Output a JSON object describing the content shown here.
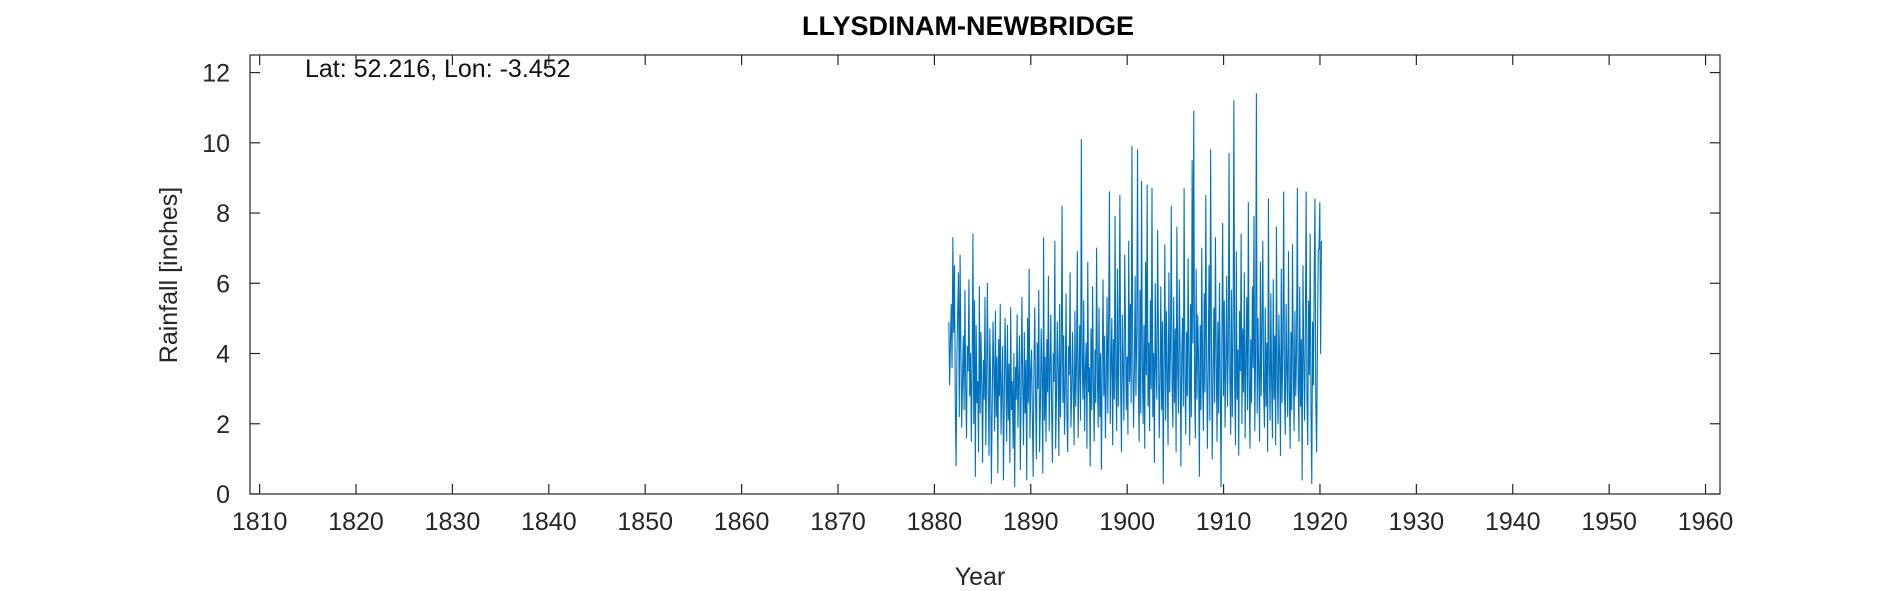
{
  "chart_data": {
    "type": "line",
    "title": "LLYSDINAM-NEWBRIDGE",
    "annotation": "Lat: 52.216, Lon: -3.452",
    "xlabel": "Year",
    "ylabel": "Rainfall [inches]",
    "xlim": [
      1809,
      1961.5
    ],
    "ylim": [
      0,
      12.5
    ],
    "xticks": [
      1810,
      1820,
      1830,
      1840,
      1850,
      1860,
      1870,
      1880,
      1890,
      1900,
      1910,
      1920,
      1930,
      1940,
      1950,
      1960
    ],
    "yticks": [
      0,
      2,
      4,
      6,
      8,
      10,
      12
    ],
    "grid": false,
    "series_color": "#0072BD",
    "series": [
      {
        "start_year": 1881.5,
        "step_years": 0.0833,
        "values": [
          4.9,
          3.1,
          4.4,
          5.4,
          3.6,
          7.3,
          4.6,
          6.5,
          2.6,
          0.8,
          3.9,
          5.2,
          6.3,
          2.2,
          6.8,
          4.1,
          1.9,
          3.3,
          4.5,
          2.4,
          5.8,
          3.0,
          1.6,
          4.2,
          3.5,
          6.1,
          2.8,
          4.0,
          1.5,
          3.7,
          7.4,
          2.0,
          5.5,
          0.5,
          4.8,
          2.6,
          3.2,
          1.2,
          5.9,
          2.3,
          4.6,
          3.1,
          0.9,
          3.8,
          2.7,
          5.6,
          1.4,
          3.4,
          6.0,
          2.9,
          1.1,
          4.7,
          3.3,
          0.3,
          2.5,
          4.9,
          3.6,
          1.8,
          5.2,
          2.2,
          3.9,
          0.6,
          4.4,
          2.8,
          5.4,
          1.7,
          3.0,
          4.2,
          0.4,
          2.6,
          5.0,
          3.5,
          1.5,
          4.8,
          2.1,
          3.7,
          0.9,
          5.3,
          2.4,
          3.2,
          1.3,
          4.0,
          0.2,
          3.6,
          2.7,
          5.1,
          1.9,
          3.3,
          4.5,
          0.7,
          2.9,
          5.6,
          3.1,
          1.4,
          4.6,
          2.3,
          3.8,
          0.4,
          5.0,
          2.6,
          6.4,
          1.6,
          3.4,
          4.1,
          2.2,
          0.5,
          3.7,
          5.3,
          2.8,
          1.0,
          4.3,
          3.0,
          5.8,
          1.2,
          2.5,
          4.7,
          3.3,
          0.6,
          7.3,
          2.1,
          3.9,
          1.5,
          4.4,
          2.9,
          6.2,
          1.8,
          3.5,
          5.1,
          2.4,
          0.9,
          4.0,
          3.2,
          7.2,
          1.3,
          2.7,
          4.9,
          3.6,
          1.1,
          5.4,
          2.2,
          3.8,
          8.2,
          2.6,
          4.5,
          1.7,
          3.1,
          5.7,
          2.3,
          1.2,
          4.2,
          3.4,
          6.3,
          1.9,
          2.8,
          4.6,
          3.0,
          1.4,
          5.2,
          2.5,
          3.7,
          6.9,
          1.6,
          3.3,
          4.8,
          2.1,
          10.1,
          3.9,
          2.7,
          5.5,
          1.8,
          3.5,
          4.3,
          1.3,
          6.6,
          2.9,
          3.6,
          0.8,
          4.7,
          2.4,
          5.9,
          3.2,
          1.5,
          4.1,
          2.6,
          7.0,
          3.4,
          1.9,
          5.3,
          2.2,
          4.0,
          0.7,
          3.7,
          6.1,
          2.8,
          4.5,
          1.6,
          3.1,
          5.6,
          2.3,
          4.9,
          8.6,
          2.0,
          3.8,
          5.0,
          1.4,
          4.4,
          2.7,
          7.9,
          3.3,
          1.8,
          6.4,
          2.5,
          4.2,
          8.5,
          3.0,
          1.2,
          5.1,
          3.6,
          2.1,
          6.8,
          4.7,
          2.4,
          3.9,
          1.7,
          7.2,
          3.2,
          5.4,
          2.6,
          9.9,
          4.1,
          1.9,
          3.5,
          6.2,
          2.8,
          4.6,
          9.8,
          3.1,
          1.5,
          5.8,
          2.3,
          8.9,
          3.7,
          2.0,
          4.8,
          1.3,
          6.6,
          3.4,
          8.8,
          2.5,
          4.3,
          1.8,
          5.5,
          3.0,
          8.7,
          2.2,
          4.0,
          0.9,
          6.0,
          3.6,
          2.7,
          7.5,
          4.5,
          1.6,
          3.2,
          5.9,
          2.4,
          4.9,
          0.3,
          3.8,
          7.1,
          2.1,
          5.2,
          3.4,
          1.4,
          6.3,
          2.9,
          4.1,
          8.2,
          3.1,
          1.9,
          5.6,
          2.6,
          4.7,
          1.2,
          7.6,
          3.5,
          2.3,
          6.1,
          4.2,
          0.8,
          3.9,
          5.0,
          2.5,
          8.7,
          3.3,
          1.7,
          4.6,
          2.8,
          6.7,
          3.7,
          1.4,
          5.4,
          2.2,
          9.5,
          4.3,
          10.9,
          3.0,
          1.6,
          6.4,
          2.7,
          5.1,
          3.8,
          0.5,
          4.8,
          2.4,
          7.0,
          3.2,
          1.8,
          5.7,
          2.9,
          8.5,
          4.0,
          1.3,
          3.6,
          6.5,
          2.1,
          9.8,
          4.4,
          1.0,
          3.4,
          5.3,
          2.6,
          7.3,
          3.9,
          1.5,
          4.9,
          2.3,
          6.0,
          3.1,
          0.2,
          4.5,
          7.7,
          2.8,
          5.5,
          1.9,
          3.7,
          6.2,
          2.5,
          4.2,
          9.7,
          3.3,
          1.7,
          5.8,
          2.2,
          4.6,
          11.2,
          3.0,
          1.4,
          6.9,
          2.7,
          4.1,
          1.1,
          5.2,
          3.5,
          7.4,
          2.0,
          4.7,
          2.9,
          6.3,
          1.6,
          3.8,
          5.6,
          2.4,
          8.3,
          3.2,
          1.3,
          4.4,
          2.6,
          5.9,
          3.6,
          7.9,
          1.8,
          4.0,
          11.4,
          2.3,
          5.0,
          3.4,
          1.5,
          6.6,
          2.8,
          4.8,
          7.2,
          3.0,
          1.9,
          5.3,
          2.5,
          4.3,
          1.2,
          8.4,
          3.7,
          2.1,
          5.7,
          3.1,
          1.6,
          6.1,
          2.7,
          4.5,
          1.4,
          7.6,
          3.3,
          2.0,
          5.1,
          3.8,
          1.1,
          6.4,
          2.6,
          4.2,
          8.6,
          2.9,
          1.7,
          5.4,
          3.5,
          2.2,
          6.9,
          3.0,
          1.3,
          4.6,
          2.4,
          7.1,
          3.6,
          1.8,
          5.2,
          2.8,
          4.0,
          8.7,
          3.2,
          1.5,
          5.9,
          2.5,
          4.4,
          0.4,
          6.5,
          3.9,
          2.1,
          4.8,
          8.6,
          2.7,
          1.4,
          5.5,
          3.4,
          7.4,
          2.3,
          0.3,
          4.9,
          3.1,
          6.2,
          8.4,
          2.6,
          1.2,
          4.1,
          6.9,
          7.0,
          8.3,
          4.0,
          7.2
        ]
      }
    ]
  }
}
